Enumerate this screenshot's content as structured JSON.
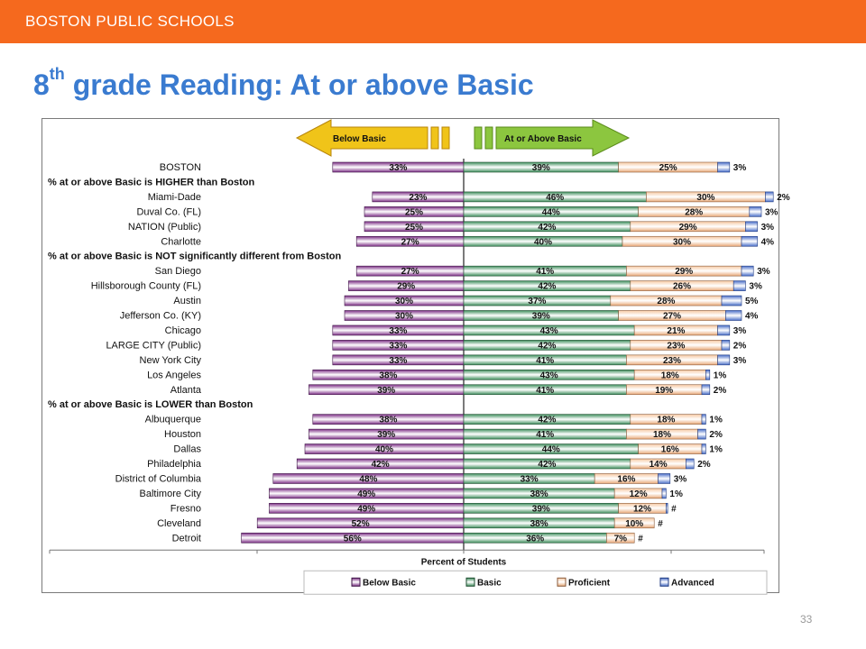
{
  "header": {
    "org": "BOSTON PUBLIC SCHOOLS"
  },
  "title": {
    "main": "8",
    "sup": "th",
    "rest": " grade Reading: At or above Basic"
  },
  "page_number": "33",
  "colors": {
    "header_bar": "#f5691e",
    "title": "#3a7bd0",
    "below_basic": "#7d2f86",
    "basic": "#3f8f5d",
    "proficient": "#f6c9a3",
    "advanced": "#4a6fc9",
    "arrow_left": "#f0c419",
    "arrow_right": "#8cc63f"
  },
  "chart_data": {
    "type": "bar",
    "subtype": "diverging stacked bar",
    "arrow_left_label": "Below Basic",
    "arrow_right_label": "At or Above Basic",
    "xlabel": "Percent of Students",
    "legend": [
      "Below Basic",
      "Basic",
      "Proficient",
      "Advanced"
    ],
    "legend_position": "bottom",
    "rows": [
      {
        "kind": "row",
        "label": "BOSTON",
        "below": "33%",
        "basic": "39%",
        "proficient": "25%",
        "advanced": "3%",
        "b": 33,
        "ba": 39,
        "p": 25,
        "a": 3
      },
      {
        "kind": "section",
        "label": "% at or above Basic is HIGHER than Boston"
      },
      {
        "kind": "row",
        "label": "Miami-Dade",
        "below": "23%",
        "basic": "46%",
        "proficient": "30%",
        "advanced": "2%",
        "b": 23,
        "ba": 46,
        "p": 30,
        "a": 2
      },
      {
        "kind": "row",
        "label": "Duval Co. (FL)",
        "below": "25%",
        "basic": "44%",
        "proficient": "28%",
        "advanced": "3%",
        "b": 25,
        "ba": 44,
        "p": 28,
        "a": 3
      },
      {
        "kind": "row",
        "label": "NATION (Public)",
        "below": "25%",
        "basic": "42%",
        "proficient": "29%",
        "advanced": "3%",
        "b": 25,
        "ba": 42,
        "p": 29,
        "a": 3
      },
      {
        "kind": "row",
        "label": "Charlotte",
        "below": "27%",
        "basic": "40%",
        "proficient": "30%",
        "advanced": "4%",
        "b": 27,
        "ba": 40,
        "p": 30,
        "a": 4
      },
      {
        "kind": "section",
        "label": "% at or above Basic is NOT significantly different from Boston"
      },
      {
        "kind": "row",
        "label": "San Diego",
        "below": "27%",
        "basic": "41%",
        "proficient": "29%",
        "advanced": "3%",
        "b": 27,
        "ba": 41,
        "p": 29,
        "a": 3
      },
      {
        "kind": "row",
        "label": "Hillsborough County (FL)",
        "below": "29%",
        "basic": "42%",
        "proficient": "26%",
        "advanced": "3%",
        "b": 29,
        "ba": 42,
        "p": 26,
        "a": 3
      },
      {
        "kind": "row",
        "label": "Austin",
        "below": "30%",
        "basic": "37%",
        "proficient": "28%",
        "advanced": "5%",
        "b": 30,
        "ba": 37,
        "p": 28,
        "a": 5
      },
      {
        "kind": "row",
        "label": "Jefferson Co. (KY)",
        "below": "30%",
        "basic": "39%",
        "proficient": "27%",
        "advanced": "4%",
        "b": 30,
        "ba": 39,
        "p": 27,
        "a": 4
      },
      {
        "kind": "row",
        "label": "Chicago",
        "below": "33%",
        "basic": "43%",
        "proficient": "21%",
        "advanced": "3%",
        "b": 33,
        "ba": 43,
        "p": 21,
        "a": 3
      },
      {
        "kind": "row",
        "label": "LARGE CITY (Public)",
        "below": "33%",
        "basic": "42%",
        "proficient": "23%",
        "advanced": "2%",
        "b": 33,
        "ba": 42,
        "p": 23,
        "a": 2
      },
      {
        "kind": "row",
        "label": "New York City",
        "below": "33%",
        "basic": "41%",
        "proficient": "23%",
        "advanced": "3%",
        "b": 33,
        "ba": 41,
        "p": 23,
        "a": 3
      },
      {
        "kind": "row",
        "label": "Los Angeles",
        "below": "38%",
        "basic": "43%",
        "proficient": "18%",
        "advanced": "1%",
        "b": 38,
        "ba": 43,
        "p": 18,
        "a": 1
      },
      {
        "kind": "row",
        "label": "Atlanta",
        "below": "39%",
        "basic": "41%",
        "proficient": "19%",
        "advanced": "2%",
        "b": 39,
        "ba": 41,
        "p": 19,
        "a": 2
      },
      {
        "kind": "section",
        "label": "% at or above Basic is LOWER than Boston"
      },
      {
        "kind": "row",
        "label": "Albuquerque",
        "below": "38%",
        "basic": "42%",
        "proficient": "18%",
        "advanced": "1%",
        "b": 38,
        "ba": 42,
        "p": 18,
        "a": 1
      },
      {
        "kind": "row",
        "label": "Houston",
        "below": "39%",
        "basic": "41%",
        "proficient": "18%",
        "advanced": "2%",
        "b": 39,
        "ba": 41,
        "p": 18,
        "a": 2
      },
      {
        "kind": "row",
        "label": "Dallas",
        "below": "40%",
        "basic": "44%",
        "proficient": "16%",
        "advanced": "1%",
        "b": 40,
        "ba": 44,
        "p": 16,
        "a": 1
      },
      {
        "kind": "row",
        "label": "Philadelphia",
        "below": "42%",
        "basic": "42%",
        "proficient": "14%",
        "advanced": "2%",
        "b": 42,
        "ba": 42,
        "p": 14,
        "a": 2
      },
      {
        "kind": "row",
        "label": "District of Columbia",
        "below": "48%",
        "basic": "33%",
        "proficient": "16%",
        "advanced": "3%",
        "b": 48,
        "ba": 33,
        "p": 16,
        "a": 3
      },
      {
        "kind": "row",
        "label": "Baltimore City",
        "below": "49%",
        "basic": "38%",
        "proficient": "12%",
        "advanced": "1%",
        "b": 49,
        "ba": 38,
        "p": 12,
        "a": 1
      },
      {
        "kind": "row",
        "label": "Fresno",
        "below": "49%",
        "basic": "39%",
        "proficient": "12%",
        "advanced": "#",
        "b": 49,
        "ba": 39,
        "p": 12,
        "a": 0.4
      },
      {
        "kind": "row",
        "label": "Cleveland",
        "below": "52%",
        "basic": "38%",
        "proficient": "10%",
        "advanced": "#",
        "b": 52,
        "ba": 38,
        "p": 10,
        "a": 0
      },
      {
        "kind": "row",
        "label": "Detroit",
        "below": "56%",
        "basic": "36%",
        "proficient": "7%",
        "advanced": "#",
        "b": 56,
        "ba": 36,
        "p": 7,
        "a": 0
      }
    ]
  }
}
